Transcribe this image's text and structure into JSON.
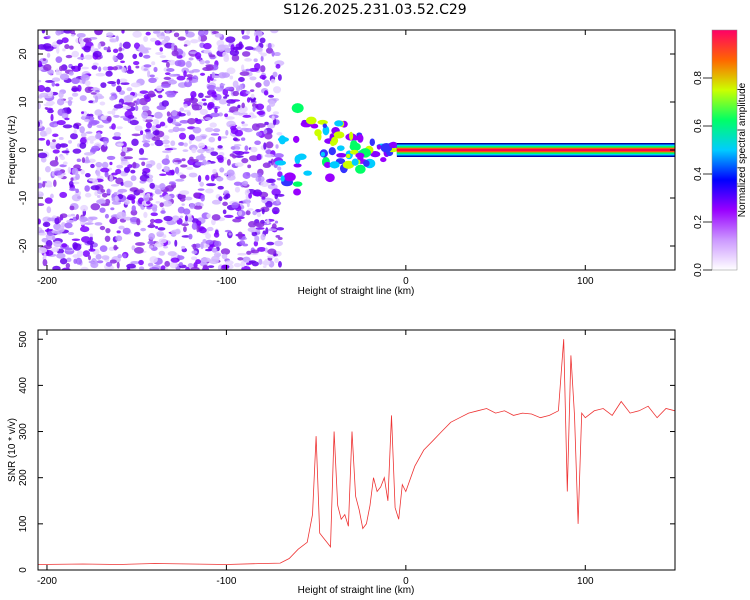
{
  "title": "S126.2025.231.03.52.C29",
  "spectrogram": {
    "type": "heatmap",
    "xlabel": "Height of straight line (km)",
    "ylabel": "Frequency (Hz)",
    "xlim": [
      -205,
      150
    ],
    "ylim": [
      -25,
      25
    ],
    "x_ticks": [
      -200,
      -100,
      0,
      100
    ],
    "y_ticks": [
      20,
      10,
      0,
      -10,
      -20
    ],
    "noise_region_km": [
      -205,
      -70
    ],
    "transition_region_km": [
      -70,
      -5
    ],
    "tone_region_km": [
      -5,
      150
    ],
    "tone_frequency_hz": 0,
    "colorbar": {
      "label": "Normalized spectral amplitude",
      "range": [
        0,
        1
      ],
      "ticks": [
        0.0,
        0.2,
        0.4,
        0.6,
        0.8
      ],
      "colors": [
        "#ffffff",
        "#cc99ff",
        "#9900ff",
        "#0000ff",
        "#00ccff",
        "#00ff66",
        "#ccff00",
        "#ff6600",
        "#ff0066"
      ]
    }
  },
  "snr": {
    "type": "line",
    "series_name": "SNR",
    "color": "#ee3333",
    "xlabel": "Height of straight line (km)",
    "ylabel": "SNR (10 * v/v)",
    "xlim": [
      -205,
      150
    ],
    "ylim": [
      0,
      520
    ],
    "x_ticks": [
      -200,
      -100,
      0,
      100
    ],
    "y_ticks": [
      0,
      100,
      200,
      300,
      400,
      500
    ],
    "x": [
      -205,
      -180,
      -160,
      -140,
      -120,
      -100,
      -80,
      -70,
      -65,
      -60,
      -55,
      -52,
      -50,
      -48,
      -46,
      -44,
      -42,
      -40,
      -38,
      -36,
      -34,
      -32,
      -30,
      -28,
      -26,
      -24,
      -22,
      -20,
      -18,
      -16,
      -14,
      -12,
      -10,
      -8,
      -6,
      -4,
      -2,
      0,
      5,
      10,
      15,
      20,
      25,
      30,
      35,
      40,
      45,
      50,
      55,
      60,
      65,
      70,
      75,
      80,
      85,
      88,
      90,
      92,
      94,
      96,
      98,
      100,
      105,
      110,
      115,
      120,
      125,
      130,
      135,
      140,
      145,
      150
    ],
    "values": [
      12,
      13,
      12,
      14,
      13,
      12,
      14,
      15,
      25,
      45,
      60,
      120,
      290,
      80,
      70,
      60,
      50,
      300,
      140,
      110,
      120,
      95,
      300,
      160,
      130,
      90,
      100,
      140,
      200,
      170,
      180,
      200,
      150,
      335,
      135,
      110,
      185,
      170,
      225,
      260,
      280,
      300,
      320,
      330,
      340,
      345,
      350,
      340,
      345,
      335,
      340,
      338,
      330,
      335,
      345,
      500,
      170,
      465,
      335,
      100,
      340,
      330,
      345,
      350,
      335,
      365,
      340,
      345,
      355,
      330,
      350,
      345
    ]
  }
}
